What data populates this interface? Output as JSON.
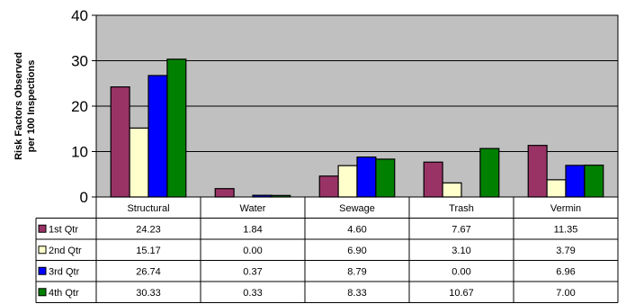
{
  "chart_data": {
    "type": "bar",
    "ylabel": "Risk Factors Observed\nper 100 Inspections",
    "ylim": [
      0,
      40
    ],
    "yticks": [
      0,
      10,
      20,
      30,
      40
    ],
    "grid": true,
    "categories": [
      "Structural",
      "Water",
      "Sewage",
      "Trash",
      "Vermin"
    ],
    "series": [
      {
        "name": "1st Qtr",
        "color": "#993366",
        "values": [
          24.23,
          1.84,
          4.6,
          7.67,
          11.35
        ],
        "labels": [
          "24.23",
          "1.84",
          "4.60",
          "7.67",
          "11.35"
        ]
      },
      {
        "name": "2nd Qtr",
        "color": "#FFFFCC",
        "values": [
          15.17,
          0.0,
          6.9,
          3.1,
          3.79
        ],
        "labels": [
          "15.17",
          "0.00",
          "6.90",
          "3.10",
          "3.79"
        ]
      },
      {
        "name": "3rd Qtr",
        "color": "#0000FF",
        "values": [
          26.74,
          0.37,
          8.79,
          0.0,
          6.96
        ],
        "labels": [
          "26.74",
          "0.37",
          "8.79",
          "0.00",
          "6.96"
        ]
      },
      {
        "name": "4th Qtr",
        "color": "#008000",
        "values": [
          30.33,
          0.33,
          8.33,
          10.67,
          7.0
        ],
        "labels": [
          "30.33",
          "0.33",
          "8.33",
          "10.67",
          "7.00"
        ]
      }
    ]
  }
}
